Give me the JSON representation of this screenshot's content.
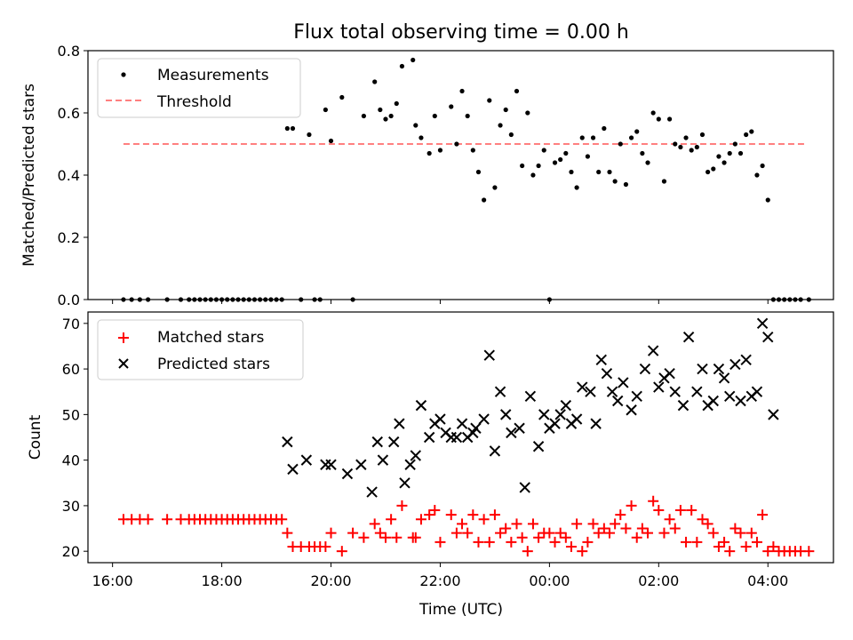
{
  "chart_data": [
    {
      "type": "scatter",
      "title": "Flux total observing time = 0.00 h",
      "ylabel": "Matched/Predicted stars",
      "xlabel": "",
      "ylim": [
        0,
        0.8
      ],
      "y_ticks": [
        "0.0",
        "0.2",
        "0.4",
        "0.6",
        "0.8"
      ],
      "x_ticks": [
        "16:00",
        "18:00",
        "20:00",
        "22:00",
        "00:00",
        "02:00",
        "04:00"
      ],
      "x_range_hours": [
        15.55,
        29.2
      ],
      "legend": {
        "placement": "upper left",
        "entries": [
          "Measurements",
          "Threshold"
        ]
      },
      "threshold": {
        "name": "Threshold",
        "value": 0.5,
        "x_start": 16.2,
        "x_end": 28.7,
        "color": "#ff7f7f"
      },
      "series": [
        {
          "name": "Measurements",
          "marker": "dot",
          "color": "#000000",
          "x": [
            16.2,
            16.35,
            16.5,
            16.65,
            17.0,
            17.25,
            17.4,
            17.5,
            17.6,
            17.7,
            17.8,
            17.9,
            18.0,
            18.1,
            18.2,
            18.3,
            18.4,
            18.5,
            18.6,
            18.7,
            18.8,
            18.9,
            19.0,
            19.1,
            19.2,
            19.3,
            19.45,
            19.6,
            19.7,
            19.8,
            19.9,
            20.0,
            20.2,
            20.4,
            20.6,
            20.8,
            20.9,
            21.0,
            21.1,
            21.2,
            21.3,
            21.5,
            21.55,
            21.65,
            21.8,
            21.9,
            22.0,
            22.2,
            22.3,
            22.4,
            22.5,
            22.6,
            22.7,
            22.8,
            22.9,
            23.0,
            23.1,
            23.2,
            23.3,
            23.4,
            23.5,
            23.6,
            23.7,
            23.8,
            23.9,
            24.0,
            24.1,
            24.2,
            24.3,
            24.4,
            24.5,
            24.6,
            24.7,
            24.8,
            24.9,
            25.0,
            25.1,
            25.2,
            25.3,
            25.4,
            25.5,
            25.6,
            25.7,
            25.8,
            25.9,
            26.0,
            26.1,
            26.2,
            26.3,
            26.4,
            26.5,
            26.6,
            26.7,
            26.8,
            26.9,
            27.0,
            27.1,
            27.2,
            27.3,
            27.4,
            27.5,
            27.6,
            27.7,
            27.8,
            27.9,
            28.0,
            28.1,
            28.2,
            28.3,
            28.4,
            28.5,
            28.6,
            28.75
          ],
          "y": [
            0,
            0,
            0,
            0,
            0,
            0,
            0,
            0,
            0,
            0,
            0,
            0,
            0,
            0,
            0,
            0,
            0,
            0,
            0,
            0,
            0,
            0,
            0,
            0,
            0.55,
            0.55,
            0,
            0.53,
            0,
            0,
            0.61,
            0.51,
            0.65,
            0,
            0.59,
            0.7,
            0.61,
            0.58,
            0.59,
            0.63,
            0.75,
            0.77,
            0.56,
            0.52,
            0.47,
            0.59,
            0.48,
            0.62,
            0.5,
            0.67,
            0.59,
            0.48,
            0.41,
            0.32,
            0.64,
            0.36,
            0.56,
            0.61,
            0.53,
            0.67,
            0.43,
            0.6,
            0.4,
            0.43,
            0.48,
            0,
            0.44,
            0.45,
            0.47,
            0.41,
            0.36,
            0.52,
            0.46,
            0.52,
            0.41,
            0.55,
            0.41,
            0.38,
            0.5,
            0.37,
            0.52,
            0.54,
            0.47,
            0.44,
            0.6,
            0.58,
            0.38,
            0.58,
            0.5,
            0.49,
            0.52,
            0.48,
            0.49,
            0.53,
            0.41,
            0.42,
            0.46,
            0.44,
            0.47,
            0.5,
            0.47,
            0.53,
            0.54,
            0.4,
            0.43,
            0.32,
            0,
            0,
            0,
            0,
            0,
            0,
            0
          ]
        }
      ]
    },
    {
      "type": "scatter",
      "title": "",
      "xlabel": "Time (UTC)",
      "ylabel": "Count",
      "ylim": [
        17.5,
        72.5
      ],
      "y_ticks": [
        "20",
        "30",
        "40",
        "50",
        "60",
        "70"
      ],
      "x_ticks": [
        "16:00",
        "18:00",
        "20:00",
        "22:00",
        "00:00",
        "02:00",
        "04:00"
      ],
      "x_range_hours": [
        15.55,
        29.2
      ],
      "legend": {
        "placement": "upper left",
        "entries": [
          "Matched stars",
          "Predicted stars"
        ]
      },
      "series": [
        {
          "name": "Matched stars",
          "marker": "plus",
          "color": "#ff0000",
          "x": [
            16.2,
            16.35,
            16.5,
            16.65,
            17.0,
            17.25,
            17.4,
            17.5,
            17.6,
            17.7,
            17.8,
            17.9,
            18.0,
            18.1,
            18.2,
            18.3,
            18.4,
            18.5,
            18.6,
            18.7,
            18.8,
            18.9,
            19.0,
            19.1,
            19.2,
            19.3,
            19.45,
            19.6,
            19.7,
            19.8,
            19.9,
            20.0,
            20.2,
            20.4,
            20.6,
            20.8,
            20.9,
            21.0,
            21.1,
            21.2,
            21.3,
            21.5,
            21.55,
            21.65,
            21.8,
            21.9,
            22.0,
            22.2,
            22.3,
            22.4,
            22.5,
            22.6,
            22.7,
            22.8,
            22.9,
            23.0,
            23.1,
            23.2,
            23.3,
            23.4,
            23.5,
            23.6,
            23.7,
            23.8,
            23.9,
            24.0,
            24.1,
            24.2,
            24.3,
            24.4,
            24.5,
            24.6,
            24.7,
            24.8,
            24.9,
            25.0,
            25.1,
            25.2,
            25.3,
            25.4,
            25.5,
            25.6,
            25.7,
            25.8,
            25.9,
            26.0,
            26.1,
            26.2,
            26.3,
            26.4,
            26.5,
            26.6,
            26.7,
            26.8,
            26.9,
            27.0,
            27.1,
            27.2,
            27.3,
            27.4,
            27.5,
            27.6,
            27.7,
            27.8,
            27.9,
            28.0,
            28.1,
            28.2,
            28.3,
            28.4,
            28.5,
            28.6,
            28.75
          ],
          "y": [
            27,
            27,
            27,
            27,
            27,
            27,
            27,
            27,
            27,
            27,
            27,
            27,
            27,
            27,
            27,
            27,
            27,
            27,
            27,
            27,
            27,
            27,
            27,
            27,
            24,
            21,
            21,
            21,
            21,
            21,
            21,
            24,
            20,
            24,
            23,
            26,
            24,
            23,
            27,
            23,
            30,
            23,
            23,
            27,
            28,
            29,
            22,
            28,
            24,
            26,
            24,
            28,
            22,
            27,
            22,
            28,
            24,
            25,
            22,
            26,
            23,
            20,
            26,
            23,
            24,
            24,
            22,
            24,
            23,
            21,
            26,
            20,
            22,
            26,
            24,
            25,
            24,
            26,
            28,
            25,
            30,
            23,
            25,
            24,
            31,
            29,
            24,
            27,
            25,
            29,
            22,
            29,
            22,
            27,
            26,
            24,
            21,
            22,
            20,
            25,
            24,
            21,
            24,
            22,
            28,
            20,
            21,
            20,
            20,
            20,
            20,
            20,
            20
          ],
          "extra": []
        },
        {
          "name": "Predicted stars",
          "marker": "x",
          "color": "#000000",
          "x": [
            19.2,
            19.3,
            19.55,
            19.9,
            20.0,
            20.3,
            20.55,
            20.75,
            20.85,
            20.95,
            21.15,
            21.25,
            21.35,
            21.45,
            21.55,
            21.65,
            21.8,
            21.9,
            22.0,
            22.1,
            22.2,
            22.3,
            22.4,
            22.5,
            22.6,
            22.65,
            22.8,
            22.9,
            23.0,
            23.1,
            23.2,
            23.3,
            23.45,
            23.55,
            23.65,
            23.8,
            23.9,
            24.0,
            24.1,
            24.2,
            24.3,
            24.4,
            24.5,
            24.6,
            24.75,
            24.85,
            24.95,
            25.05,
            25.15,
            25.25,
            25.35,
            25.5,
            25.6,
            25.75,
            25.9,
            26.0,
            26.1,
            26.2,
            26.3,
            26.45,
            26.55,
            26.7,
            26.8,
            26.9,
            27.0,
            27.1,
            27.2,
            27.3,
            27.4,
            27.5,
            27.6,
            27.7,
            27.8,
            27.9,
            28.0,
            28.1
          ],
          "y": [
            44,
            38,
            40,
            39,
            39,
            37,
            39,
            33,
            44,
            40,
            44,
            48,
            35,
            39,
            41,
            52,
            45,
            48,
            49,
            46,
            45,
            45,
            48,
            45,
            46,
            47,
            49,
            63,
            42,
            55,
            50,
            46,
            47,
            34,
            54,
            43,
            50,
            47,
            48,
            50,
            52,
            48,
            49,
            56,
            55,
            48,
            62,
            59,
            55,
            53,
            57,
            51,
            54,
            60,
            64,
            56,
            58,
            59,
            55,
            52,
            67,
            55,
            60,
            52,
            53,
            60,
            58,
            54,
            61,
            53,
            62,
            54,
            55,
            70,
            67,
            50
          ],
          "extra": []
        }
      ]
    }
  ]
}
